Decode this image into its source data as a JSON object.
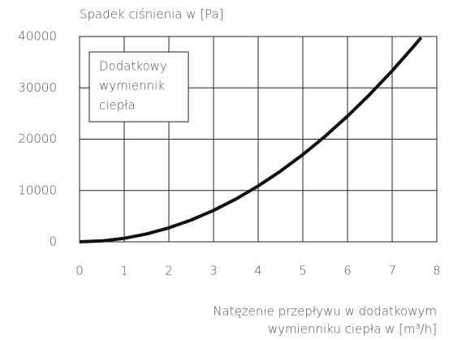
{
  "chart_data": {
    "type": "line",
    "ylabel": "Spadek ciśnienia w [Pa]",
    "xlabel": [
      "Natężenie przepływu w dodatkowym",
      "wymienniku ciepła w [m³/h]"
    ],
    "annotation": [
      "Dodatkowy",
      "wymiennik",
      "ciepła"
    ],
    "x": [
      0,
      0.5,
      1,
      1.5,
      2,
      2.5,
      3,
      3.5,
      4,
      4.5,
      5,
      5.5,
      6,
      6.5,
      7,
      7.5,
      7.65
    ],
    "series": [
      {
        "color": "#111111",
        "values": [
          0,
          170,
          680,
          1530,
          2720,
          4250,
          6120,
          8330,
          10880,
          13770,
          17000,
          20570,
          24480,
          28730,
          33320,
          38250,
          39800
        ]
      }
    ],
    "xlim": [
      0,
      8
    ],
    "xticks": [
      0,
      1,
      2,
      3,
      4,
      5,
      6,
      7,
      8
    ],
    "ylim": [
      0,
      40000
    ],
    "yticks": [
      0,
      10000,
      20000,
      30000,
      40000
    ],
    "grid": true
  }
}
